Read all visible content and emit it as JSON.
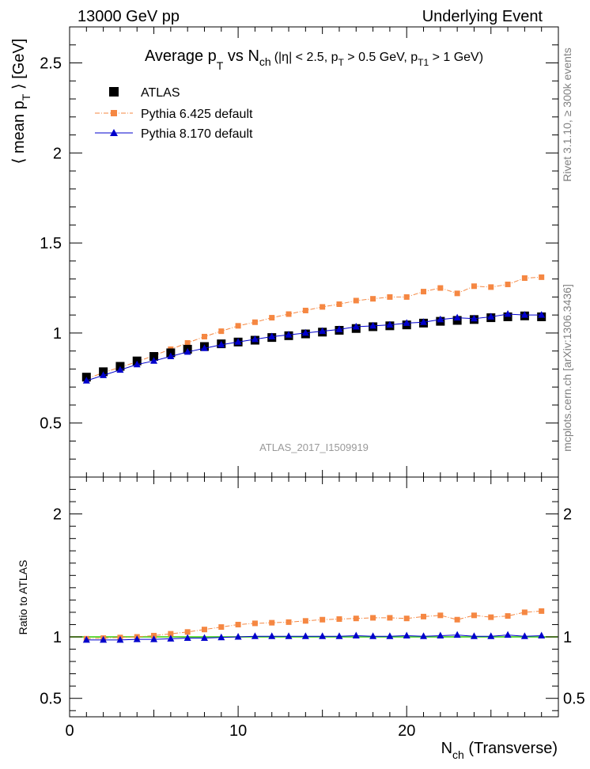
{
  "header": {
    "energy_label": "13000 GeV pp",
    "process_label": "Underlying Event"
  },
  "side_labels": {
    "rivet": "Rivet 3.1.10, ≥ 300k events",
    "mcplots": "mcplots.cern.ch [arXiv:1306.3436]"
  },
  "analysis_id": "ATLAS_2017_I1509919",
  "colors": {
    "atlas": "#000000",
    "pythia6": "#f58742",
    "pythia8": "#0000cc",
    "ratio_band": "#ffff00",
    "ratio_line": "#32cd32"
  },
  "chart_data": [
    {
      "type": "scatter",
      "panel": "main",
      "title": {
        "prefix": "Average p",
        "pt_sub": "T",
        "mid": " vs N",
        "nch_sub": "ch",
        "cuts": "(|η| < 2.5, p",
        "cut_pt_sub": "T",
        "cut_mid": " > 0.5 GeV, p",
        "cut_pt1_sub": "T1",
        "cut_end": " > 1 GeV)"
      },
      "ylabel": {
        "prefix": "⟨ mean p",
        "sub": "T",
        "suffix": " ⟩ [GeV]"
      },
      "xlim": [
        0,
        29
      ],
      "ylim": [
        0.2,
        2.7
      ],
      "y_ticks": [
        0.5,
        1,
        1.5,
        2,
        2.5
      ],
      "y_tick_labels": [
        "0.5",
        "1",
        "1.5",
        "2",
        "2.5"
      ],
      "x": [
        1,
        2,
        3,
        4,
        5,
        6,
        7,
        8,
        9,
        10,
        11,
        12,
        13,
        14,
        15,
        16,
        17,
        18,
        19,
        20,
        21,
        22,
        23,
        24,
        25,
        26,
        27,
        28
      ],
      "series": [
        {
          "name": "ATLAS",
          "style": "points",
          "values": [
            0.755,
            0.785,
            0.815,
            0.845,
            0.87,
            0.89,
            0.91,
            0.925,
            0.94,
            0.95,
            0.96,
            0.975,
            0.985,
            0.995,
            1.005,
            1.015,
            1.025,
            1.035,
            1.04,
            1.045,
            1.055,
            1.065,
            1.07,
            1.075,
            1.085,
            1.09,
            1.095,
            1.09
          ]
        },
        {
          "name": "Pythia 6.425 default",
          "style": "dashdot-squares",
          "values": [
            0.745,
            0.78,
            0.81,
            0.84,
            0.875,
            0.91,
            0.945,
            0.98,
            1.01,
            1.04,
            1.06,
            1.085,
            1.105,
            1.125,
            1.145,
            1.16,
            1.18,
            1.19,
            1.2,
            1.2,
            1.23,
            1.25,
            1.22,
            1.26,
            1.255,
            1.27,
            1.305,
            1.31
          ]
        },
        {
          "name": "Pythia 8.170 default",
          "style": "solid-triangles",
          "values": [
            0.735,
            0.765,
            0.795,
            0.825,
            0.845,
            0.87,
            0.895,
            0.915,
            0.935,
            0.95,
            0.965,
            0.98,
            0.99,
            1.0,
            1.01,
            1.02,
            1.035,
            1.04,
            1.045,
            1.055,
            1.06,
            1.075,
            1.085,
            1.08,
            1.09,
            1.105,
            1.1,
            1.1
          ]
        }
      ]
    },
    {
      "type": "line",
      "panel": "ratio",
      "ylabel": "Ratio to ATLAS",
      "xlabel": {
        "prefix": "N",
        "sub": "ch",
        "suffix": " (Transverse)"
      },
      "xlim": [
        0,
        29
      ],
      "ylim": [
        0.35,
        2.3
      ],
      "x_ticks": [
        0,
        10,
        20
      ],
      "x_tick_labels": [
        "0",
        "10",
        "20"
      ],
      "y_ticks": [
        0.5,
        1,
        2
      ],
      "y_tick_labels": [
        "0.5",
        "1",
        "2"
      ],
      "x": [
        1,
        2,
        3,
        4,
        5,
        6,
        7,
        8,
        9,
        10,
        11,
        12,
        13,
        14,
        15,
        16,
        17,
        18,
        19,
        20,
        21,
        22,
        23,
        24,
        25,
        26,
        27,
        28
      ],
      "series": [
        {
          "name": "Pythia 6.425 default",
          "style": "dashdot-squares",
          "values": [
            0.985,
            0.99,
            0.995,
            1.0,
            1.01,
            1.025,
            1.04,
            1.06,
            1.08,
            1.1,
            1.11,
            1.115,
            1.12,
            1.13,
            1.14,
            1.145,
            1.15,
            1.155,
            1.155,
            1.15,
            1.165,
            1.175,
            1.14,
            1.175,
            1.16,
            1.17,
            1.2,
            1.21
          ]
        },
        {
          "name": "Pythia 8.170 default",
          "style": "solid-triangles",
          "values": [
            0.975,
            0.975,
            0.975,
            0.98,
            0.98,
            0.985,
            0.99,
            0.99,
            0.995,
            1.0,
            1.005,
            1.005,
            1.005,
            1.005,
            1.005,
            1.005,
            1.01,
            1.005,
            1.005,
            1.01,
            1.005,
            1.01,
            1.015,
            1.005,
            1.005,
            1.015,
            1.005,
            1.01
          ]
        }
      ]
    }
  ]
}
